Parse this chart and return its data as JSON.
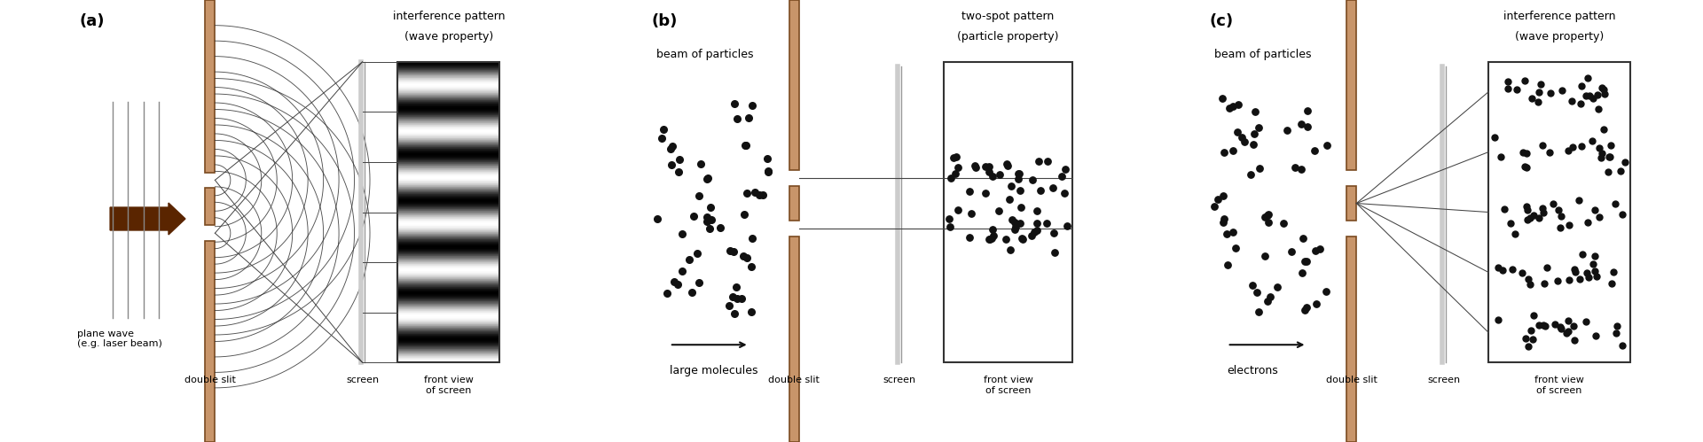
{
  "bg_color": "#ffffff",
  "slit_color": "#c8956a",
  "slit_edge_color": "#7a4a20",
  "text_color": "#000000",
  "panel_a": {
    "label": "(a)",
    "title_line1": "interference pattern",
    "title_line2": "(wave property)",
    "wave_label": "plane wave\n(e.g. laser beam)",
    "slit_label": "double slit",
    "screen_label": "screen",
    "front_label": "front view\nof screen"
  },
  "panel_b": {
    "label": "(b)",
    "title_line1": "two-spot pattern",
    "title_line2": "(particle property)",
    "beam_label": "beam of particles",
    "molecule_label": "large molecules",
    "slit_label": "double slit",
    "screen_label": "screen",
    "front_label": "front view\nof screen"
  },
  "panel_c": {
    "label": "(c)",
    "title_line1": "interference pattern",
    "title_line2": "(wave property)",
    "beam_label": "beam of particles",
    "electron_label": "electrons",
    "slit_label": "double slit",
    "screen_label": "screen",
    "front_label": "front view\nof screen"
  }
}
